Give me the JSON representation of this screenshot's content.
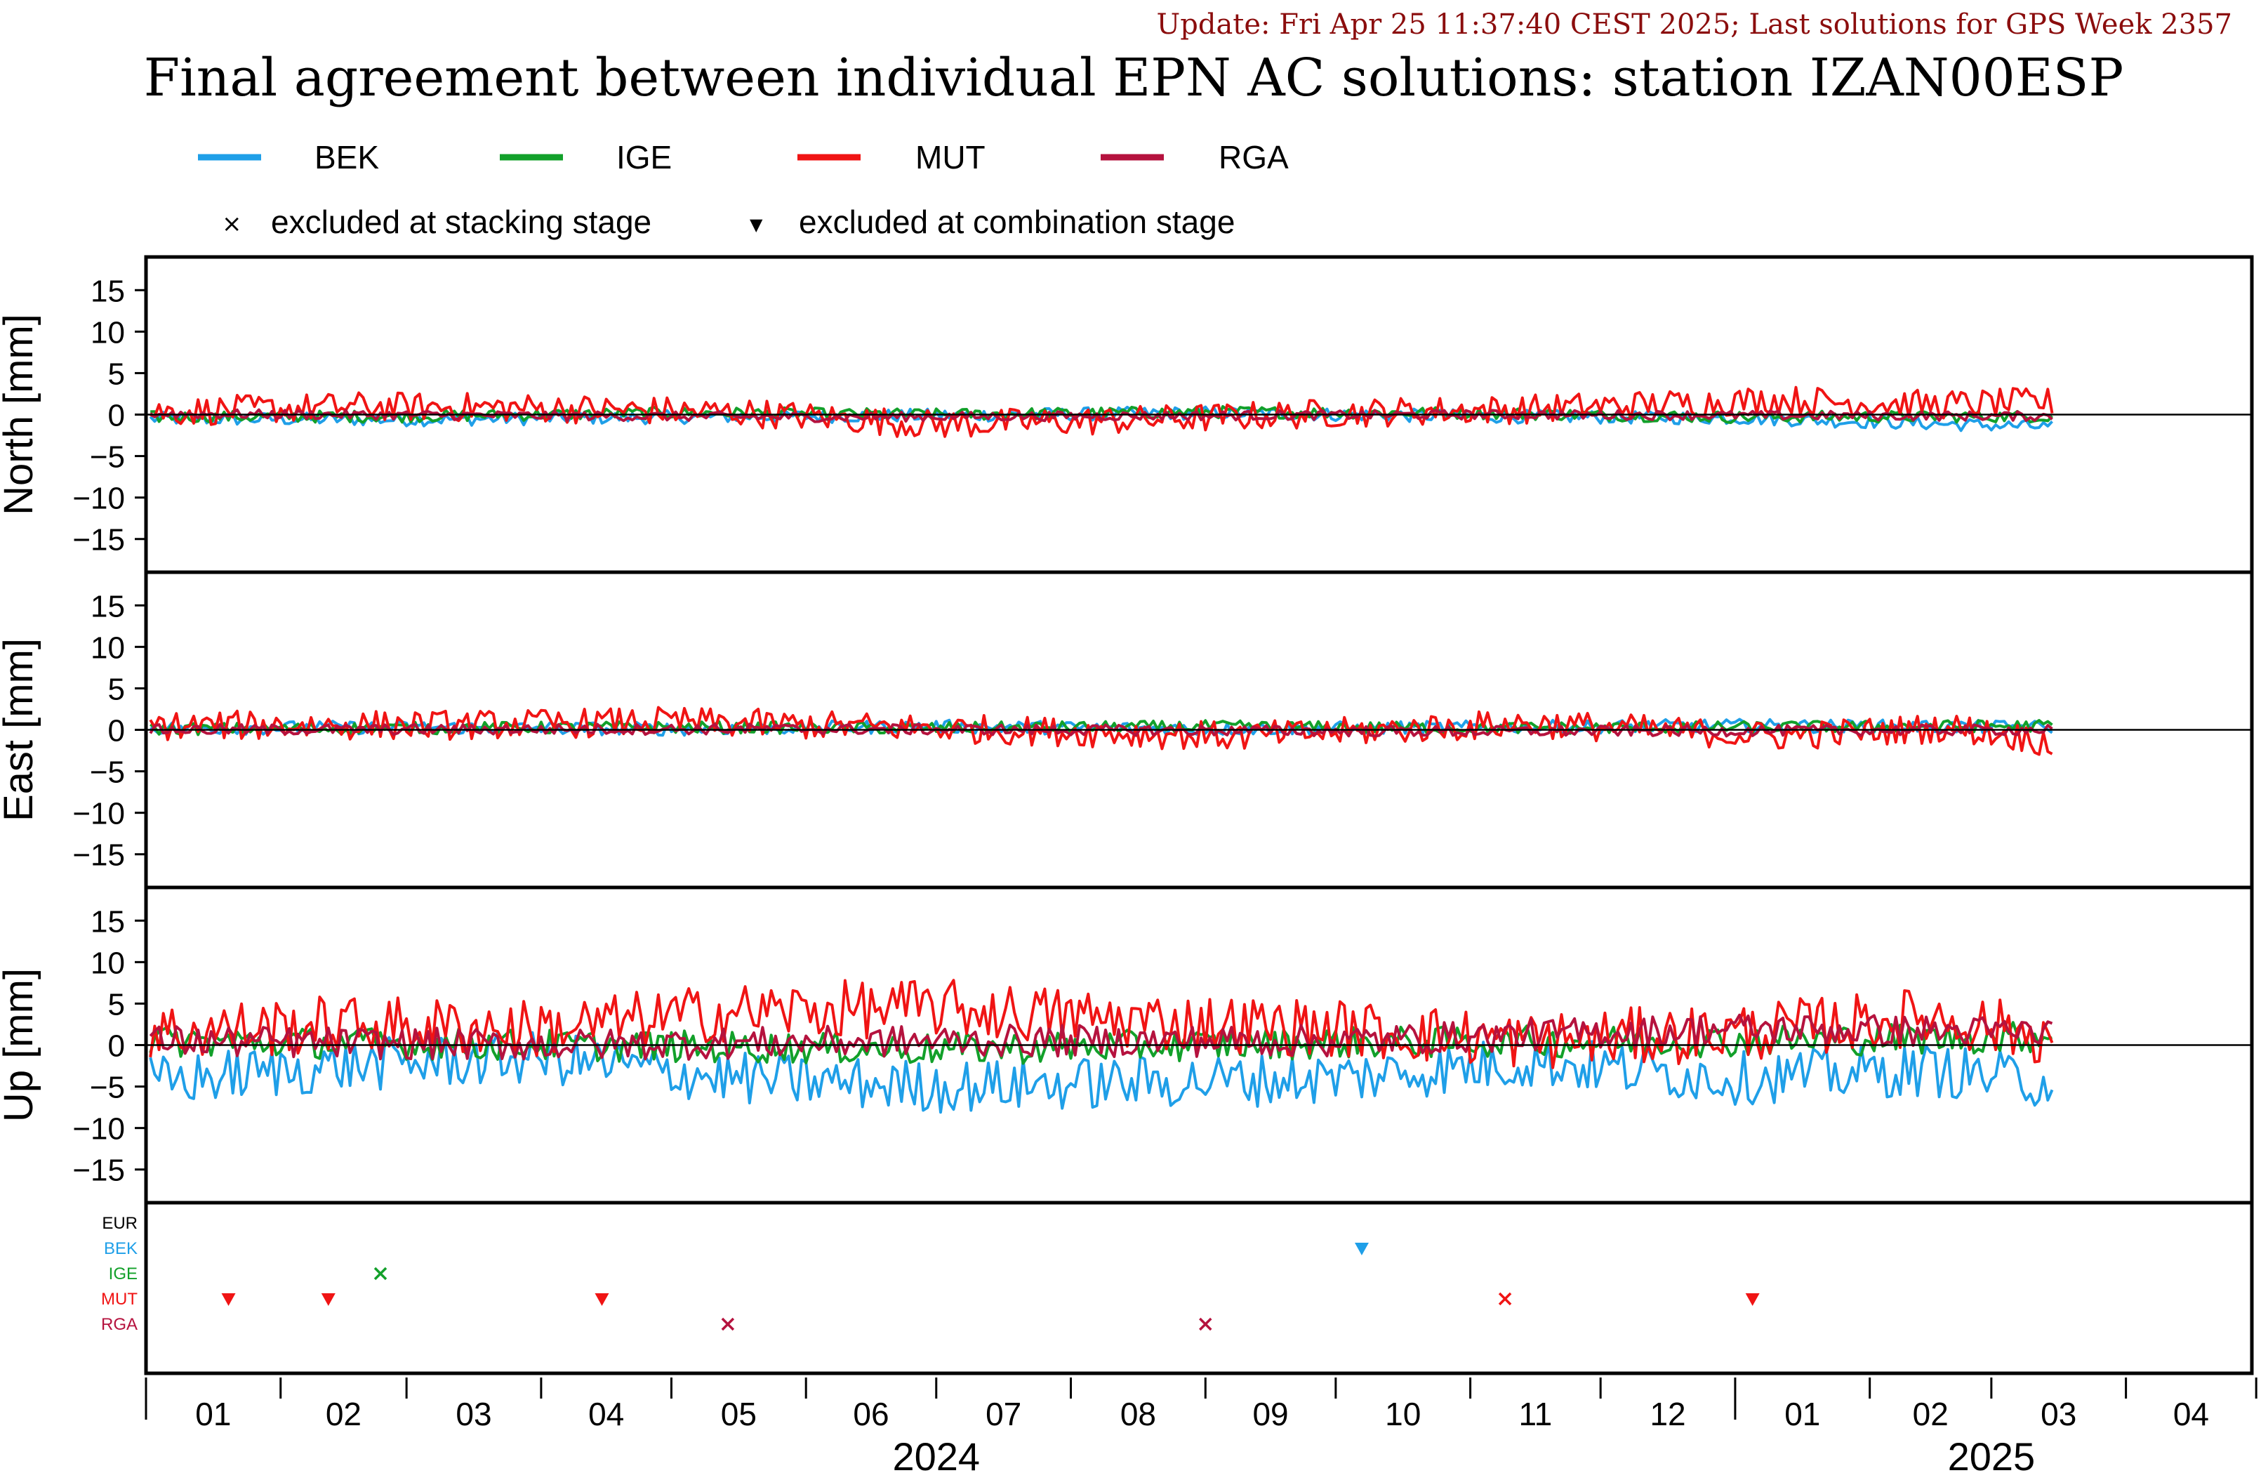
{
  "header": {
    "update_text": "Update: Fri Apr 25 11:37:40 CEST 2025; Last solutions for GPS Week 2357",
    "title": "Final agreement between individual EPN AC solutions: station IZAN00ESP"
  },
  "legend": {
    "items": [
      {
        "label": "BEK",
        "color": "#1f9fe8"
      },
      {
        "label": "IGE",
        "color": "#12a02a"
      },
      {
        "label": "MUT",
        "color": "#f01414"
      },
      {
        "label": "RGA",
        "color": "#b5123e"
      }
    ],
    "markers": [
      {
        "symbol": "×",
        "label": "excluded at stacking stage"
      },
      {
        "symbol": "▼",
        "label": "excluded at combination stage"
      }
    ]
  },
  "colors": {
    "BEK": "#1f9fe8",
    "IGE": "#12a02a",
    "MUT": "#f01414",
    "RGA": "#b5123e",
    "EUR": "#000000",
    "update": "#8b0d0d"
  },
  "chart_data": {
    "type": "line",
    "x_unit": "date",
    "x_range": [
      "2024-01-01",
      "2025-04-30"
    ],
    "x_month_ticks": [
      "01",
      "02",
      "03",
      "04",
      "05",
      "06",
      "07",
      "08",
      "09",
      "10",
      "11",
      "12",
      "01",
      "02",
      "03",
      "04"
    ],
    "x_year_labels": [
      "2024",
      "2025"
    ],
    "series_names": [
      "BEK",
      "IGE",
      "MUT",
      "RGA"
    ],
    "panels": [
      {
        "ylabel": "North [mm]",
        "ylim": [
          -19,
          19
        ],
        "yticks": [
          "15",
          "10",
          "5",
          "0",
          "-5",
          "-10",
          "-15"
        ],
        "series": [
          {
            "name": "BEK",
            "x": [
              "2024-01-02",
              "2024-03-01",
              "2024-05-01",
              "2024-07-01",
              "2024-09-01",
              "2024-11-01",
              "2025-01-01",
              "2025-03-15"
            ],
            "y": [
              -0.5,
              -0.6,
              -0.3,
              -0.1,
              0.2,
              -0.2,
              -0.4,
              -1.5
            ]
          },
          {
            "name": "IGE",
            "x": [
              "2024-01-02",
              "2024-03-01",
              "2024-05-01",
              "2024-07-01",
              "2024-09-01",
              "2024-11-01",
              "2025-01-01",
              "2025-03-15"
            ],
            "y": [
              -0.3,
              -0.2,
              0.2,
              0.0,
              0.3,
              0.2,
              -0.3,
              -0.2
            ]
          },
          {
            "name": "MUT",
            "x": [
              "2024-01-02",
              "2024-02-20",
              "2024-04-01",
              "2024-05-20",
              "2024-07-01",
              "2024-08-20",
              "2024-10-01",
              "2024-11-15",
              "2025-01-10",
              "2025-02-15",
              "2025-03-15"
            ],
            "y": [
              0.3,
              1.0,
              0.8,
              0.2,
              -1.2,
              -0.6,
              0.2,
              0.7,
              1.8,
              1.2,
              1.5
            ]
          },
          {
            "name": "RGA",
            "x": [
              "2024-01-02",
              "2024-06-01",
              "2024-11-01",
              "2025-03-15"
            ],
            "y": [
              0.1,
              -0.3,
              0.0,
              -0.2
            ]
          }
        ]
      },
      {
        "ylabel": "East [mm]",
        "ylim": [
          -19,
          19
        ],
        "yticks": [
          "15",
          "10",
          "5",
          "0",
          "-5",
          "-10",
          "-15"
        ],
        "series": [
          {
            "name": "BEK",
            "x": [
              "2024-01-02",
              "2024-03-01",
              "2024-05-01",
              "2024-07-01",
              "2024-09-01",
              "2024-11-01",
              "2025-01-01",
              "2025-03-15"
            ],
            "y": [
              0.2,
              0.3,
              0.1,
              0.4,
              0.1,
              0.3,
              0.5,
              0.3
            ]
          },
          {
            "name": "IGE",
            "x": [
              "2024-01-02",
              "2024-03-01",
              "2024-05-01",
              "2024-07-01",
              "2024-09-01",
              "2024-11-01",
              "2025-01-01",
              "2025-03-15"
            ],
            "y": [
              0.1,
              0.2,
              0.3,
              0.2,
              0.4,
              0.2,
              0.3,
              0.5
            ]
          },
          {
            "name": "MUT",
            "x": [
              "2024-01-02",
              "2024-03-15",
              "2024-05-01",
              "2024-07-01",
              "2024-09-10",
              "2024-11-15",
              "2025-01-10",
              "2025-02-20",
              "2025-03-15"
            ],
            "y": [
              0.5,
              0.6,
              1.0,
              0.2,
              -0.8,
              0.8,
              -0.8,
              0.3,
              -1.5
            ]
          },
          {
            "name": "RGA",
            "x": [
              "2024-01-02",
              "2024-06-01",
              "2024-11-01",
              "2025-03-15"
            ],
            "y": [
              0.0,
              0.1,
              -0.2,
              0.0
            ]
          }
        ]
      },
      {
        "ylabel": "Up [mm]",
        "ylim": [
          -19,
          19
        ],
        "yticks": [
          "15",
          "10",
          "5",
          "0",
          "-5",
          "-10",
          "-15"
        ],
        "series": [
          {
            "name": "BEK",
            "x": [
              "2024-01-02",
              "2024-02-15",
              "2024-04-01",
              "2024-05-15",
              "2024-07-01",
              "2024-08-15",
              "2024-10-01",
              "2024-11-15",
              "2025-01-01",
              "2025-02-15",
              "2025-03-15"
            ],
            "y": [
              -4.5,
              -2.5,
              -1.5,
              -4.0,
              -5.0,
              -4.5,
              -4.0,
              -2.0,
              -4.0,
              -3.0,
              -4.5
            ]
          },
          {
            "name": "IGE",
            "x": [
              "2024-01-02",
              "2024-04-01",
              "2024-07-01",
              "2024-10-01",
              "2025-01-01",
              "2025-03-15"
            ],
            "y": [
              0.5,
              0.0,
              -0.5,
              0.3,
              0.5,
              1.0
            ]
          },
          {
            "name": "MUT",
            "x": [
              "2024-01-02",
              "2024-02-15",
              "2024-04-01",
              "2024-05-15",
              "2024-07-01",
              "2024-08-15",
              "2024-10-01",
              "2024-11-15",
              "2025-01-01",
              "2025-02-15",
              "2025-03-15"
            ],
            "y": [
              1.5,
              2.5,
              2.0,
              4.0,
              4.5,
              3.0,
              2.0,
              0.5,
              1.5,
              3.5,
              1.0
            ]
          },
          {
            "name": "RGA",
            "x": [
              "2024-01-02",
              "2024-04-01",
              "2024-07-01",
              "2024-10-01",
              "2025-01-01",
              "2025-03-15"
            ],
            "y": [
              0.5,
              0.0,
              0.5,
              0.5,
              2.0,
              1.5
            ]
          }
        ]
      }
    ],
    "exclusion_panel": {
      "rows": [
        "EUR",
        "BEK",
        "IGE",
        "MUT",
        "RGA"
      ],
      "events": [
        {
          "row": "MUT",
          "date": "2024-01-20",
          "type": "combination"
        },
        {
          "row": "MUT",
          "date": "2024-02-12",
          "type": "combination"
        },
        {
          "row": "IGE",
          "date": "2024-02-24",
          "type": "stacking"
        },
        {
          "row": "MUT",
          "date": "2024-04-15",
          "type": "combination"
        },
        {
          "row": "RGA",
          "date": "2024-05-14",
          "type": "stacking"
        },
        {
          "row": "RGA",
          "date": "2024-09-01",
          "type": "stacking"
        },
        {
          "row": "BEK",
          "date": "2024-10-07",
          "type": "combination"
        },
        {
          "row": "MUT",
          "date": "2024-11-09",
          "type": "stacking"
        },
        {
          "row": "MUT",
          "date": "2025-01-05",
          "type": "combination"
        }
      ]
    }
  }
}
